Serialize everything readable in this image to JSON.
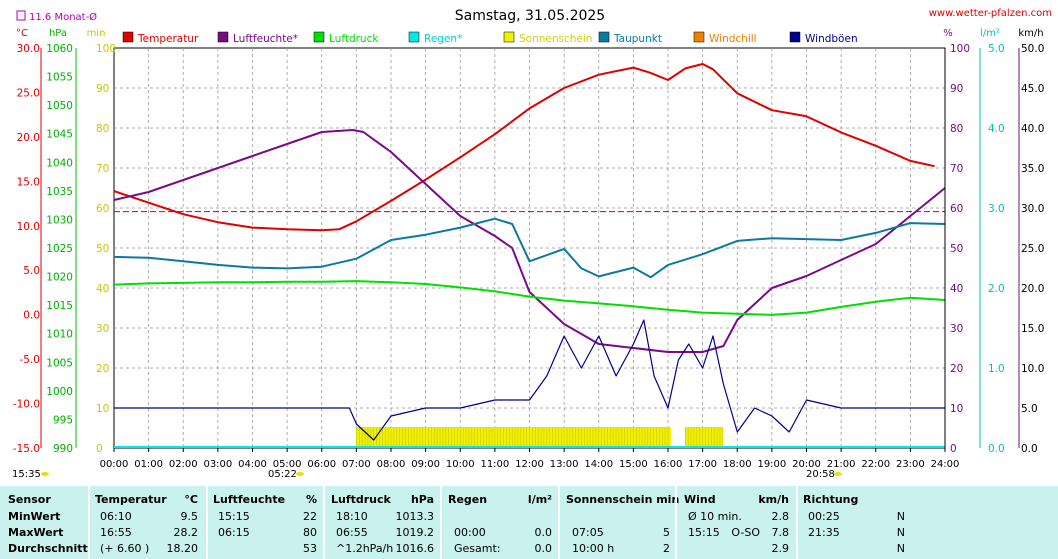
{
  "header": {
    "date_title": "Samstag, 31.05.2025",
    "site": "www.wetter-pfalzen.com",
    "monthly_avg_label": "11.6 Monat-Ø"
  },
  "axis_units": {
    "temp": "°C",
    "pressure": "hPa",
    "sun": "min",
    "humidity": "%",
    "rain": "l/m²",
    "wind": "km/h"
  },
  "legend": [
    {
      "label": "Temperatur",
      "color": "#e00000"
    },
    {
      "label": "Luftfeuchte*",
      "color": "#7a0a8a"
    },
    {
      "label": "Luftdruck",
      "color": "#00e000"
    },
    {
      "label": "Regen*",
      "color": "#00e8e8"
    },
    {
      "label": "Sonnenschein",
      "color": "#f0f000"
    },
    {
      "label": "Taupunkt",
      "color": "#0a7aa0"
    },
    {
      "label": "Windchill",
      "color": "#f08000"
    },
    {
      "label": "Windböen",
      "color": "#00008c"
    }
  ],
  "sun_events": {
    "sunrise_clock": "15:35",
    "sunrise": "05:22",
    "sunset": "20:58"
  },
  "chart_data": {
    "type": "line",
    "x_ticks": [
      "00:00",
      "01:00",
      "02:00",
      "03:00",
      "04:00",
      "05:00",
      "06:00",
      "07:00",
      "08:00",
      "09:00",
      "10:00",
      "11:00",
      "12:00",
      "13:00",
      "14:00",
      "15:00",
      "16:00",
      "17:00",
      "18:00",
      "19:00",
      "20:00",
      "21:00",
      "22:00",
      "23:00",
      "24:00"
    ],
    "axes": {
      "temp": {
        "label": "°C",
        "ylim": [
          -15,
          30
        ],
        "ticks": [
          "30.0",
          "25.0",
          "20.0",
          "15.0",
          "10.0",
          "5.0",
          "0.0",
          "-5.0",
          "-10.0",
          "-15.0"
        ]
      },
      "pressure": {
        "label": "hPa",
        "ylim": [
          990,
          1060
        ],
        "ticks": [
          "1060",
          "1055",
          "1050",
          "1045",
          "1040",
          "1035",
          "1030",
          "1025",
          "1020",
          "1015",
          "1010",
          "1005",
          "1000",
          "995",
          "990"
        ]
      },
      "sun": {
        "label": "min",
        "ylim": [
          0,
          100
        ],
        "ticks": [
          "100",
          "90",
          "80",
          "70",
          "60",
          "50",
          "40",
          "30",
          "20",
          "10",
          "0"
        ]
      },
      "humidity": {
        "label": "%",
        "ylim": [
          0,
          100
        ],
        "ticks": [
          "100",
          "90",
          "80",
          "70",
          "60",
          "50",
          "40",
          "30",
          "20",
          "10",
          "0"
        ]
      },
      "rain": {
        "label": "l/m²",
        "ylim": [
          0,
          5
        ],
        "ticks": [
          "5.0",
          "4.0",
          "3.0",
          "2.0",
          "1.0",
          "0.0"
        ]
      },
      "wind": {
        "label": "km/h",
        "ylim": [
          0,
          50
        ],
        "ticks": [
          "50.0",
          "45.0",
          "40.0",
          "35.0",
          "30.0",
          "25.0",
          "20.0",
          "15.0",
          "10.0",
          "5.0",
          "0.0"
        ]
      }
    },
    "grid": true,
    "monthly_avg_temp": 11.6,
    "series": [
      {
        "name": "Temperatur",
        "axis": "temp",
        "color": "#e00000",
        "x": [
          0,
          1,
          2,
          3,
          4,
          5,
          6,
          6.5,
          7,
          8,
          9,
          10,
          11,
          12,
          13,
          14,
          15,
          15.5,
          16,
          16.5,
          17,
          17.3,
          18,
          19,
          19.9,
          20,
          21,
          22,
          23,
          23.7
        ],
        "y": [
          13.9,
          12.6,
          11.3,
          10.4,
          9.8,
          9.6,
          9.5,
          9.6,
          10.5,
          12.8,
          15.2,
          17.7,
          20.3,
          23.2,
          25.5,
          27.0,
          27.8,
          27.2,
          26.4,
          27.7,
          28.2,
          27.6,
          24.9,
          23.0,
          22.4,
          22.3,
          20.5,
          19.0,
          17.3,
          16.7
        ]
      },
      {
        "name": "Luftfeuchte*",
        "axis": "humidity",
        "color": "#7a0a8a",
        "x": [
          0,
          1,
          2,
          3,
          4,
          5,
          6,
          6.9,
          7.2,
          8,
          9,
          10,
          11,
          11.5,
          12,
          13,
          14,
          15,
          16,
          17,
          17.6,
          18,
          19,
          20,
          21,
          22,
          23,
          24
        ],
        "y": [
          62,
          64,
          67,
          70,
          73,
          76,
          79,
          79.5,
          79,
          74,
          66,
          58,
          53,
          50,
          39,
          31,
          26,
          25,
          24,
          24,
          25.5,
          32,
          40,
          43,
          47,
          51,
          58,
          65
        ]
      },
      {
        "name": "Luftdruck",
        "axis": "pressure",
        "color": "#00e000",
        "x": [
          0,
          1,
          2,
          3,
          4,
          5,
          6,
          7,
          8,
          9,
          10,
          11,
          12,
          13,
          14,
          15,
          16,
          17,
          18,
          19,
          20,
          21,
          22,
          23,
          24
        ],
        "y": [
          1018.6,
          1018.8,
          1018.9,
          1019.0,
          1019.0,
          1019.1,
          1019.1,
          1019.2,
          1019.0,
          1018.7,
          1018.1,
          1017.4,
          1016.5,
          1015.8,
          1015.3,
          1014.8,
          1014.2,
          1013.7,
          1013.5,
          1013.3,
          1013.7,
          1014.7,
          1015.6,
          1016.3,
          1015.9
        ]
      },
      {
        "name": "Taupunkt",
        "axis": "temp",
        "color": "#0a7aa0",
        "x": [
          0,
          1,
          2,
          3,
          4,
          5,
          6,
          7,
          8,
          9,
          10,
          10.5,
          11,
          11.5,
          12,
          13,
          13.5,
          14,
          15,
          15.5,
          16,
          17,
          18,
          19,
          20,
          21,
          22,
          23,
          24
        ],
        "y": [
          6.5,
          6.4,
          6.0,
          5.6,
          5.3,
          5.2,
          5.4,
          6.3,
          8.4,
          9.0,
          9.8,
          10.3,
          10.8,
          10.2,
          6.0,
          7.4,
          5.2,
          4.3,
          5.3,
          4.2,
          5.6,
          6.8,
          8.3,
          8.6,
          8.5,
          8.4,
          9.2,
          10.3,
          10.2
        ]
      },
      {
        "name": "Windböen",
        "axis": "wind",
        "color": "#00008c",
        "x": [
          0,
          0.5,
          1,
          2,
          3,
          4,
          5,
          6,
          6.8,
          7,
          7.5,
          8,
          9,
          10,
          11,
          12,
          12.5,
          13,
          13.5,
          14,
          14.5,
          15,
          15.3,
          15.6,
          16,
          16.3,
          16.6,
          17,
          17.3,
          17.6,
          18,
          18.5,
          19,
          19.5,
          20,
          21,
          22,
          23,
          24
        ],
        "y": [
          5,
          5,
          5,
          5,
          5,
          5,
          5,
          5,
          5,
          3,
          1,
          4,
          5,
          5,
          6,
          6,
          9,
          14,
          10,
          14,
          9,
          13,
          16,
          9,
          5,
          11,
          13,
          10,
          14,
          8,
          2,
          5,
          4,
          2,
          6,
          5,
          5,
          5,
          5
        ]
      }
    ],
    "sunshine_spans": [
      [
        "07:00",
        "16:05"
      ],
      [
        "16:30",
        "17:35"
      ]
    ]
  },
  "stats": {
    "headers": {
      "sensor": "Sensor",
      "temperature": "Temperatur",
      "temperature_unit": "°C",
      "humidity": "Luftfeuchte",
      "humidity_unit": "%",
      "pressure": "Luftdruck",
      "pressure_unit": "hPa",
      "rain": "Regen",
      "rain_unit": "l/m²",
      "sun": "Sonnenschein min",
      "wind": "Wind",
      "wind_unit": "km/h",
      "direction": "Richtung"
    },
    "rows": [
      {
        "label": "MinWert",
        "temp_time": "06:10",
        "temp_val": "9.5",
        "hum_time": "15:15",
        "hum_val": "22",
        "press_time": "18:10",
        "press_val": "1013.3",
        "rain_time": "",
        "rain_val": "",
        "sun_time": "",
        "sun_val": "",
        "wind_time": "Ø 10 min.",
        "wind_dir": "",
        "wind_val": "2.8",
        "dir_time": "00:25",
        "dir_val": "N"
      },
      {
        "label": "MaxWert",
        "temp_time": "16:55",
        "temp_val": "28.2",
        "hum_time": "06:15",
        "hum_val": "80",
        "press_time": "06:55",
        "press_val": "1019.2",
        "rain_time": "00:00",
        "rain_val": "0.0",
        "sun_time": "07:05",
        "sun_val": "5",
        "wind_time": "15:15",
        "wind_dir": "O-SO",
        "wind_val": "7.8",
        "dir_time": "21:35",
        "dir_val": "N"
      },
      {
        "label": "Durchschnitt",
        "temp_time": "(+ 6.60 )",
        "temp_val": "18.20",
        "hum_time": "",
        "hum_val": "53",
        "press_time": "^1.2hPa/h",
        "press_val": "1016.6",
        "rain_time": "Gesamt:",
        "rain_val": "0.0",
        "sun_time": "10:00 h",
        "sun_val": "2",
        "wind_time": "",
        "wind_dir": "",
        "wind_val": "2.9",
        "dir_time": "",
        "dir_val": "N"
      }
    ]
  }
}
